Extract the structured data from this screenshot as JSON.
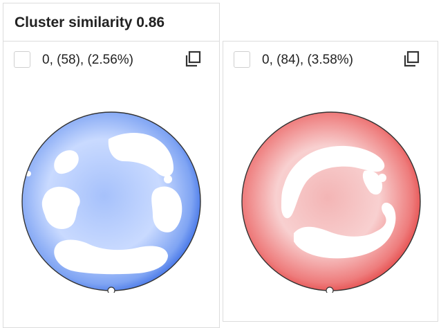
{
  "header": {
    "title": "Cluster similarity 0.86"
  },
  "clusters": [
    {
      "label": "0, (58), (2.56%)",
      "color": "#3b6fe6",
      "center_color": "#a9c3ff"
    },
    {
      "label": "0, (84), (3.58%)",
      "color": "#e23b3b",
      "center_color": "#f6bcbc"
    }
  ],
  "icons": {
    "copy": "copy-icon",
    "checkbox": "checkbox"
  }
}
